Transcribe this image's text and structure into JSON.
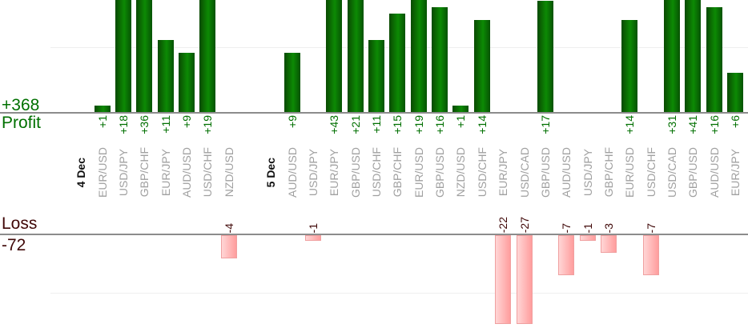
{
  "left_labels": {
    "profit_total": "+368",
    "profit_label": "Profit",
    "loss_label": "Loss",
    "loss_total": "-72"
  },
  "chart_data": {
    "type": "bar",
    "orientation": "vertical-columns",
    "panels": {
      "top": "profit (green, bars up from baseline)",
      "bottom": "loss (pink, bars down from baseline)"
    },
    "totals": {
      "profit": 368,
      "loss": -72
    },
    "groups": [
      {
        "date": "4 Dec",
        "trades": [
          {
            "pair": "EUR/USD",
            "value": 1
          },
          {
            "pair": "USD/JPY",
            "value": 18
          },
          {
            "pair": "GBP/CHF",
            "value": 36
          },
          {
            "pair": "EUR/JPY",
            "value": 11
          },
          {
            "pair": "AUD/USD",
            "value": 9
          },
          {
            "pair": "USD/CHF",
            "value": 19
          },
          {
            "pair": "NZD/USD",
            "value": -4
          }
        ]
      },
      {
        "date": "5 Dec",
        "trades": [
          {
            "pair": "AUD/USD",
            "value": 9
          },
          {
            "pair": "USD/JPY",
            "value": -1
          },
          {
            "pair": "EUR/JPY",
            "value": 43
          },
          {
            "pair": "GBP/USD",
            "value": 21
          },
          {
            "pair": "USD/CHF",
            "value": 11
          },
          {
            "pair": "GBP/CHF",
            "value": 15
          },
          {
            "pair": "EUR/USD",
            "value": 19
          },
          {
            "pair": "GBP/USD",
            "value": 16
          },
          {
            "pair": "NZD/USD",
            "value": 1
          },
          {
            "pair": "USD/CHF",
            "value": 14
          },
          {
            "pair": "EUR/JPY",
            "value": -22
          },
          {
            "pair": "USD/CAD",
            "value": -27
          },
          {
            "pair": "GBP/USD",
            "value": 17
          },
          {
            "pair": "AUD/USD",
            "value": -7
          },
          {
            "pair": "USD/JPY",
            "value": -1
          },
          {
            "pair": "GBP/CHF",
            "value": -3
          },
          {
            "pair": "EUR/USD",
            "value": 14
          },
          {
            "pair": "USD/CHF",
            "value": -7
          },
          {
            "pair": "USD/CAD",
            "value": 31
          },
          {
            "pair": "GBP/USD",
            "value": 41
          },
          {
            "pair": "AUD/USD",
            "value": 16
          },
          {
            "pair": "EUR/JPY",
            "value": 6
          }
        ]
      }
    ],
    "colors": {
      "profit_bar_gradient": [
        "#0a4a02",
        "#0c8a04",
        "#065203"
      ],
      "loss_bar_gradient": [
        "#ffd6d6",
        "#ff9d9d"
      ],
      "loss_bar_border": "#f0a0a0",
      "profit_text": "#007000",
      "loss_text": "#400808",
      "pair_text": "#a0a0a0",
      "date_text": "#111111",
      "baseline": "#8c8c8c",
      "gridline": "#efefef"
    }
  }
}
